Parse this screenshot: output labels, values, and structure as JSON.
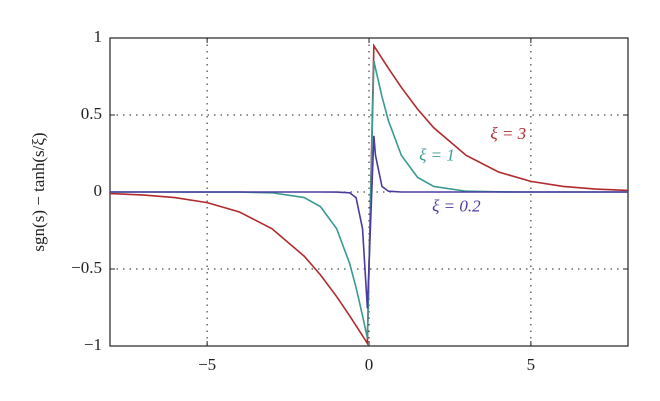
{
  "chart_data": {
    "type": "line",
    "ylabel": "sgn(s) − tanh(s/ξ)",
    "x": [
      -8,
      -7,
      -6,
      -5,
      -4,
      -3,
      -2,
      -1.5,
      -1,
      -0.6,
      -0.4,
      -0.2,
      -0.05,
      0.15,
      0.2,
      0.4,
      0.6,
      1,
      1.5,
      2,
      3,
      4,
      5,
      6,
      7,
      8
    ],
    "series": [
      {
        "name": "ξ = 3",
        "color": "#b02a2e",
        "values": [
          -0.01,
          -0.019,
          -0.036,
          -0.069,
          -0.13,
          -0.238,
          -0.417,
          -0.538,
          -0.679,
          -0.803,
          -0.868,
          -0.933,
          -0.983,
          0.95,
          0.933,
          0.868,
          0.803,
          0.679,
          0.538,
          0.417,
          0.238,
          0.13,
          0.069,
          0.036,
          0.019,
          0.01
        ]
      },
      {
        "name": "ξ = 1",
        "color": "#3a9a92",
        "values": [
          0,
          0,
          0,
          -0.0001,
          -0.0007,
          -0.005,
          -0.036,
          -0.095,
          -0.238,
          -0.463,
          -0.62,
          -0.803,
          -0.95,
          0.851,
          0.803,
          0.62,
          0.463,
          0.238,
          0.095,
          0.036,
          0.005,
          0.001,
          0,
          0,
          0,
          0
        ]
      },
      {
        "name": "ξ = 0.2",
        "color": "#4b3a9f",
        "values": [
          0,
          0,
          0,
          0,
          0,
          0,
          0,
          0,
          -0.0001,
          -0.005,
          -0.036,
          -0.238,
          -0.755,
          0.365,
          0.238,
          0.036,
          0.005,
          0,
          0,
          0,
          0,
          0,
          0,
          0,
          0,
          0
        ]
      }
    ],
    "xlim": [
      -8,
      8
    ],
    "ylim": [
      -1,
      1
    ],
    "xticks": [
      {
        "value": -5,
        "label": "−5"
      },
      0,
      5
    ],
    "yticks": [
      {
        "value": -1,
        "label": "−1"
      },
      {
        "value": -0.5,
        "label": "−0.5"
      },
      0,
      0.5,
      1
    ],
    "grid": true
  }
}
